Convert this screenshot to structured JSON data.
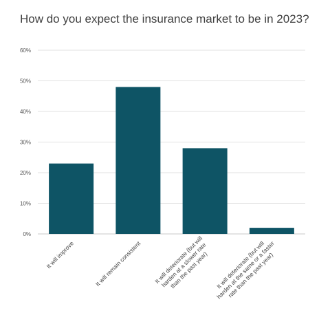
{
  "chart_data": {
    "type": "bar",
    "title": "How do you expect the insurance market to be in 2023?",
    "xlabel": "",
    "ylabel": "",
    "ylim": [
      0,
      60
    ],
    "y_ticks": [
      "0%",
      "10%",
      "20%",
      "30%",
      "40%",
      "50%",
      "60%"
    ],
    "y_tick_values": [
      0,
      10,
      20,
      30,
      40,
      50,
      60
    ],
    "categories": [
      [
        "It will improve"
      ],
      [
        "It will remain consistent"
      ],
      [
        "It will deteriorate (but will",
        "harden at a slower rate",
        "than the past year)"
      ],
      [
        "It will deteriorate (but will",
        "harden at the same or a faster",
        "rate than the past year)"
      ]
    ],
    "values": [
      23,
      48,
      28,
      2
    ],
    "bar_color": "#0e5465",
    "grid": true,
    "legend": "none"
  }
}
